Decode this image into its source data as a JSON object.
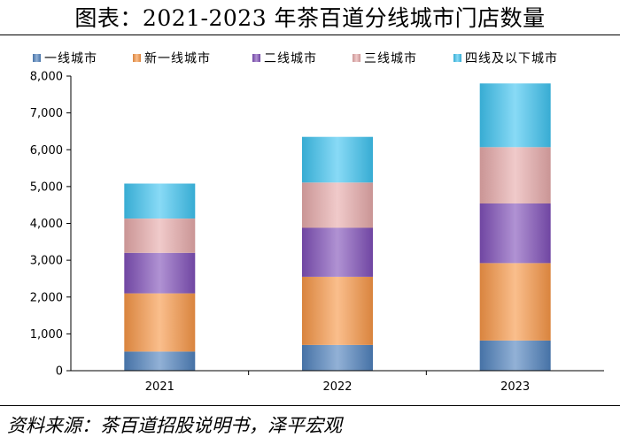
{
  "title": "图表：2021-2023 年茶百道分线城市门店数量",
  "source": "资料来源：茶百道招股说明书，泽平宏观",
  "chart_data": {
    "type": "bar",
    "stacked": true,
    "categories": [
      "2021",
      "2022",
      "2023"
    ],
    "series": [
      {
        "name": "一线城市",
        "values": [
          520,
          700,
          820
        ],
        "color": "#4F81BD"
      },
      {
        "name": "新一线城市",
        "values": [
          1580,
          1850,
          2100
        ],
        "color": "#F79646"
      },
      {
        "name": "二线城市",
        "values": [
          1100,
          1330,
          1620
        ],
        "color": "#7F4FB8"
      },
      {
        "name": "三线城市",
        "values": [
          930,
          1230,
          1530
        ],
        "color": "#E6A9A9"
      },
      {
        "name": "四线及以下城市",
        "values": [
          950,
          1240,
          1730
        ],
        "color": "#3FC3F0"
      }
    ],
    "ylim": [
      0,
      8000
    ],
    "yticks": [
      "0",
      "1,000",
      "2,000",
      "3,000",
      "4,000",
      "5,000",
      "6,000",
      "7,000",
      "8,000"
    ],
    "legend": "top",
    "grid": false
  }
}
